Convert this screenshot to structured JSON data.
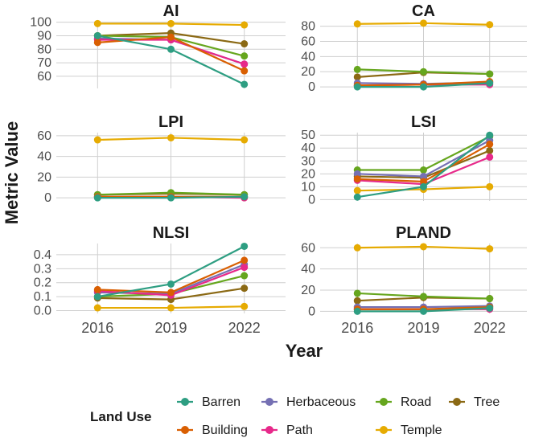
{
  "chart_data": {
    "type": "line",
    "x": [
      2016,
      2019,
      2022
    ],
    "x_tick_labels": [
      "2016",
      "2019",
      "2022"
    ],
    "xlabel": "Year",
    "ylabel": "Metric Value",
    "legend": {
      "title": "Land Use",
      "entries": [
        "Barren",
        "Herbaceous",
        "Road",
        "Tree",
        "Building",
        "Path",
        "Temple"
      ]
    },
    "colors": {
      "Barren": "#2E9E82",
      "Building": "#D95F02",
      "Herbaceous": "#7570B3",
      "Path": "#E7298A",
      "Road": "#66A61E",
      "Temple": "#E6AB02",
      "Tree": "#8B6914"
    },
    "panels": [
      {
        "title": "AI",
        "ylim": [
          51,
          101
        ],
        "yticks": [
          60,
          70,
          80,
          90,
          100
        ],
        "series": [
          {
            "name": "Barren",
            "values": [
              90,
              80,
              54
            ]
          },
          {
            "name": "Herbaceous",
            "values": [
              88,
              87,
              69
            ]
          },
          {
            "name": "Road",
            "values": [
              90,
              89,
              75
            ]
          },
          {
            "name": "Tree",
            "values": [
              90,
              92,
              84
            ]
          },
          {
            "name": "Building",
            "values": [
              85,
              89,
              64
            ]
          },
          {
            "name": "Path",
            "values": [
              87,
              87,
              69
            ]
          },
          {
            "name": "Temple",
            "values": [
              99,
              99,
              98
            ]
          }
        ]
      },
      {
        "title": "CA",
        "ylim": [
          -2,
          87
        ],
        "yticks": [
          0,
          20,
          40,
          60,
          80
        ],
        "series": [
          {
            "name": "Barren",
            "values": [
              0,
              0,
              5
            ]
          },
          {
            "name": "Herbaceous",
            "values": [
              5,
              4,
              6
            ]
          },
          {
            "name": "Road",
            "values": [
              23,
              20,
              17
            ]
          },
          {
            "name": "Tree",
            "values": [
              13,
              19,
              17
            ]
          },
          {
            "name": "Building",
            "values": [
              2,
              3,
              7
            ]
          },
          {
            "name": "Path",
            "values": [
              2,
              3,
              3
            ]
          },
          {
            "name": "Temple",
            "values": [
              83,
              84,
              82
            ]
          }
        ]
      },
      {
        "title": "LPI",
        "ylim": [
          -3,
          63
        ],
        "yticks": [
          0,
          20,
          40,
          60
        ],
        "series": [
          {
            "name": "Barren",
            "values": [
              0,
              0,
              1
            ]
          },
          {
            "name": "Herbaceous",
            "values": [
              1,
              1,
              1
            ]
          },
          {
            "name": "Road",
            "values": [
              3,
              5,
              3
            ]
          },
          {
            "name": "Tree",
            "values": [
              3,
              4,
              3
            ]
          },
          {
            "name": "Building",
            "values": [
              1,
              1,
              1
            ]
          },
          {
            "name": "Path",
            "values": [
              1,
              1,
              0
            ]
          },
          {
            "name": "Temple",
            "values": [
              56,
              58,
              56
            ]
          }
        ]
      },
      {
        "title": "LSI",
        "ylim": [
          -1,
          52
        ],
        "yticks": [
          0,
          10,
          20,
          30,
          40,
          50
        ],
        "series": [
          {
            "name": "Barren",
            "values": [
              2,
              10,
              50
            ]
          },
          {
            "name": "Herbaceous",
            "values": [
              20,
              18,
              46
            ]
          },
          {
            "name": "Road",
            "values": [
              23,
              23,
              49
            ]
          },
          {
            "name": "Tree",
            "values": [
              18,
              17,
              38
            ]
          },
          {
            "name": "Building",
            "values": [
              16,
              14,
              43
            ]
          },
          {
            "name": "Path",
            "values": [
              15,
              12,
              33
            ]
          },
          {
            "name": "Temple",
            "values": [
              7,
              8,
              10
            ]
          }
        ]
      },
      {
        "title": "NLSI",
        "ylim": [
          -0.02,
          0.48
        ],
        "yticks": [
          0.0,
          0.1,
          0.2,
          0.3,
          0.4
        ],
        "ytick_labels": [
          "0.0",
          "0.1",
          "0.2",
          "0.3",
          "0.4"
        ],
        "series": [
          {
            "name": "Barren",
            "values": [
              0.1,
              0.19,
              0.46
            ]
          },
          {
            "name": "Herbaceous",
            "values": [
              0.13,
              0.12,
              0.33
            ]
          },
          {
            "name": "Road",
            "values": [
              0.1,
              0.12,
              0.25
            ]
          },
          {
            "name": "Tree",
            "values": [
              0.09,
              0.08,
              0.16
            ]
          },
          {
            "name": "Building",
            "values": [
              0.15,
              0.13,
              0.36
            ]
          },
          {
            "name": "Path",
            "values": [
              0.14,
              0.11,
              0.31
            ]
          },
          {
            "name": "Temple",
            "values": [
              0.02,
              0.02,
              0.03
            ]
          }
        ]
      },
      {
        "title": "PLAND",
        "ylim": [
          -2,
          64
        ],
        "yticks": [
          0,
          20,
          40,
          60
        ],
        "series": [
          {
            "name": "Barren",
            "values": [
              0,
              0,
              3
            ]
          },
          {
            "name": "Herbaceous",
            "values": [
              4,
              4,
              5
            ]
          },
          {
            "name": "Road",
            "values": [
              17,
              14,
              12
            ]
          },
          {
            "name": "Tree",
            "values": [
              10,
              13,
              12
            ]
          },
          {
            "name": "Building",
            "values": [
              2,
              2,
              4
            ]
          },
          {
            "name": "Path",
            "values": [
              2,
              2,
              2
            ]
          },
          {
            "name": "Temple",
            "values": [
              60,
              61,
              59
            ]
          }
        ]
      }
    ]
  }
}
